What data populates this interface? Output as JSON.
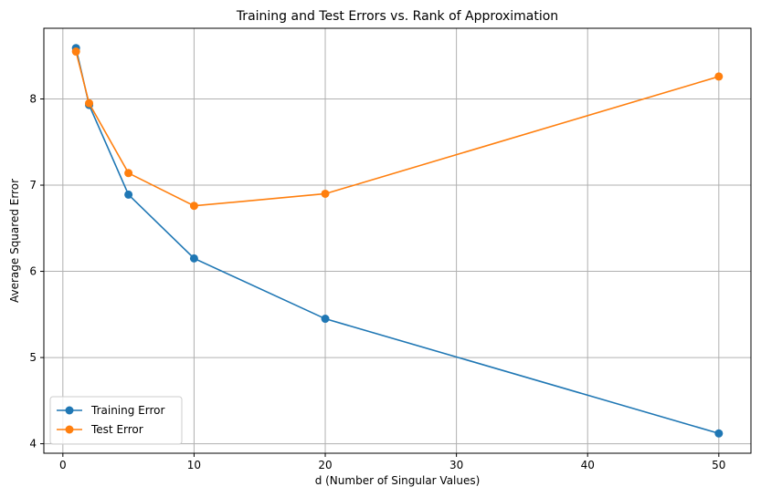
{
  "chart_data": {
    "type": "line",
    "title": "Training and Test Errors vs. Rank of Approximation",
    "xlabel": "d (Number of Singular Values)",
    "ylabel": "Average Squared Error",
    "xlim": [
      -1.45,
      52.45
    ],
    "ylim": [
      3.89,
      8.82
    ],
    "xticks": [
      0,
      10,
      20,
      30,
      40,
      50
    ],
    "yticks": [
      4,
      5,
      6,
      7,
      8
    ],
    "grid": true,
    "legend_position": "lower-left",
    "series": [
      {
        "name": "Training Error",
        "color": "#1f77b4",
        "marker": "circle",
        "x": [
          1,
          2,
          5,
          10,
          20,
          50
        ],
        "y": [
          8.59,
          7.93,
          6.89,
          6.15,
          5.45,
          4.12
        ]
      },
      {
        "name": "Test Error",
        "color": "#ff7f0e",
        "marker": "circle",
        "x": [
          1,
          2,
          5,
          10,
          20,
          50
        ],
        "y": [
          8.55,
          7.95,
          7.14,
          6.76,
          6.9,
          8.26
        ]
      }
    ]
  }
}
